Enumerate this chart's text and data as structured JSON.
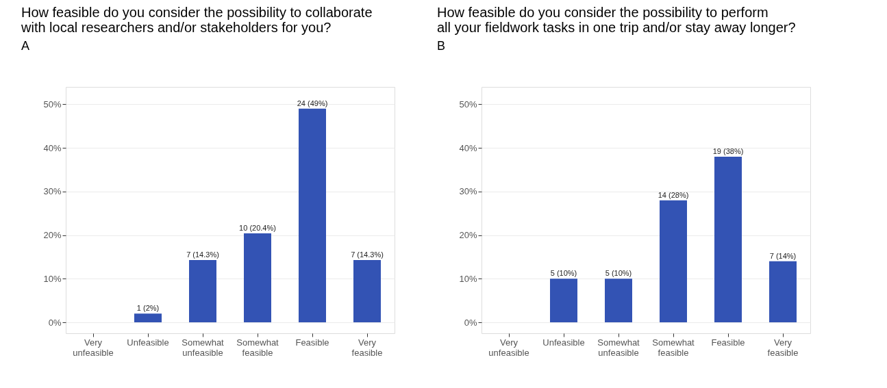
{
  "chart_data": [
    {
      "type": "bar",
      "annotations": [
        "A"
      ],
      "title": "How feasible do you consider the possibility to collaborate\nwith local researchers and/or stakeholders for you?",
      "categories": [
        "Very unfeasible",
        "Unfeasible",
        "Somewhat unfeasible",
        "Somewhat feasible",
        "Feasible",
        "Very feasible"
      ],
      "values": [
        0,
        2,
        14.3,
        20.4,
        49,
        14.3
      ],
      "value_labels": [
        null,
        "1 (2%)",
        "7 (14.3%)",
        "10 (20.4%)",
        "24 (49%)",
        "7 (14.3%)"
      ],
      "color": "#3353b4",
      "ylim": [
        -2.5,
        54
      ],
      "yticks": [
        {
          "value": 0,
          "label": "0%"
        },
        {
          "value": 10,
          "label": "10%"
        },
        {
          "value": 20,
          "label": "20%"
        },
        {
          "value": 30,
          "label": "30%"
        },
        {
          "value": 40,
          "label": "40%"
        },
        {
          "value": 50,
          "label": "50%"
        }
      ],
      "grid": "y"
    },
    {
      "type": "bar",
      "annotations": [
        "B"
      ],
      "title": "How feasible do you consider the possibility to perform\nall your fieldwork tasks in one trip and/or stay away longer?",
      "categories": [
        "Very unfeasible",
        "Unfeasible",
        "Somewhat unfeasible",
        "Somewhat feasible",
        "Feasible",
        "Very feasible"
      ],
      "values": [
        0,
        10,
        10,
        28,
        38,
        14
      ],
      "value_labels": [
        null,
        "5 (10%)",
        "5 (10%)",
        "14 (28%)",
        "19 (38%)",
        "7 (14%)"
      ],
      "color": "#3353b4",
      "ylim": [
        -2.5,
        54
      ],
      "yticks": [
        {
          "value": 0,
          "label": "0%"
        },
        {
          "value": 10,
          "label": "10%"
        },
        {
          "value": 20,
          "label": "20%"
        },
        {
          "value": 30,
          "label": "30%"
        },
        {
          "value": 40,
          "label": "40%"
        },
        {
          "value": 50,
          "label": "50%"
        }
      ],
      "grid": "y"
    }
  ]
}
